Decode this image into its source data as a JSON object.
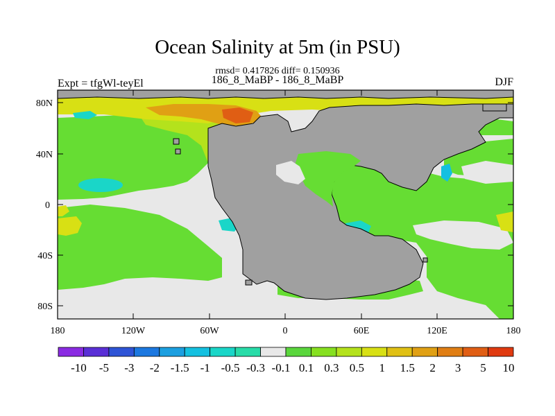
{
  "title": "Ocean Salinity at 5m (in PSU)",
  "stats_line": "rmsd= 0.417826 diff= 0.150936",
  "comparison": "186_8_MaBP - 186_8_MaBP",
  "experiment": "Expt = tfgWl-teyEl",
  "season": "DJF",
  "lat_labels": [
    "80N",
    "40N",
    "0",
    "40S",
    "80S"
  ],
  "lon_labels": [
    "180",
    "120W",
    "60W",
    "0",
    "60E",
    "120E",
    "180"
  ],
  "colorbar": {
    "labels": [
      "-10",
      "-5",
      "-3",
      "-2",
      "-1.5",
      "-1",
      "-0.5",
      "-0.3",
      "-0.1",
      "0.1",
      "0.3",
      "0.5",
      "1",
      "1.5",
      "2",
      "3",
      "5",
      "10"
    ],
    "colors": [
      "#8a2be2",
      "#5a2fd6",
      "#2e54d6",
      "#1c78e0",
      "#1c9fe0",
      "#14c0e0",
      "#1ad6c8",
      "#28dca8",
      "#e8e8e8",
      "#5ad63c",
      "#86e020",
      "#b4e21c",
      "#d8e014",
      "#e0c014",
      "#e0a014",
      "#e07e14",
      "#e05e14",
      "#e03a10"
    ]
  },
  "colors": {
    "land": "#a0a0a0",
    "neutral": "#e8e8e8",
    "green": "#66dd33"
  }
}
